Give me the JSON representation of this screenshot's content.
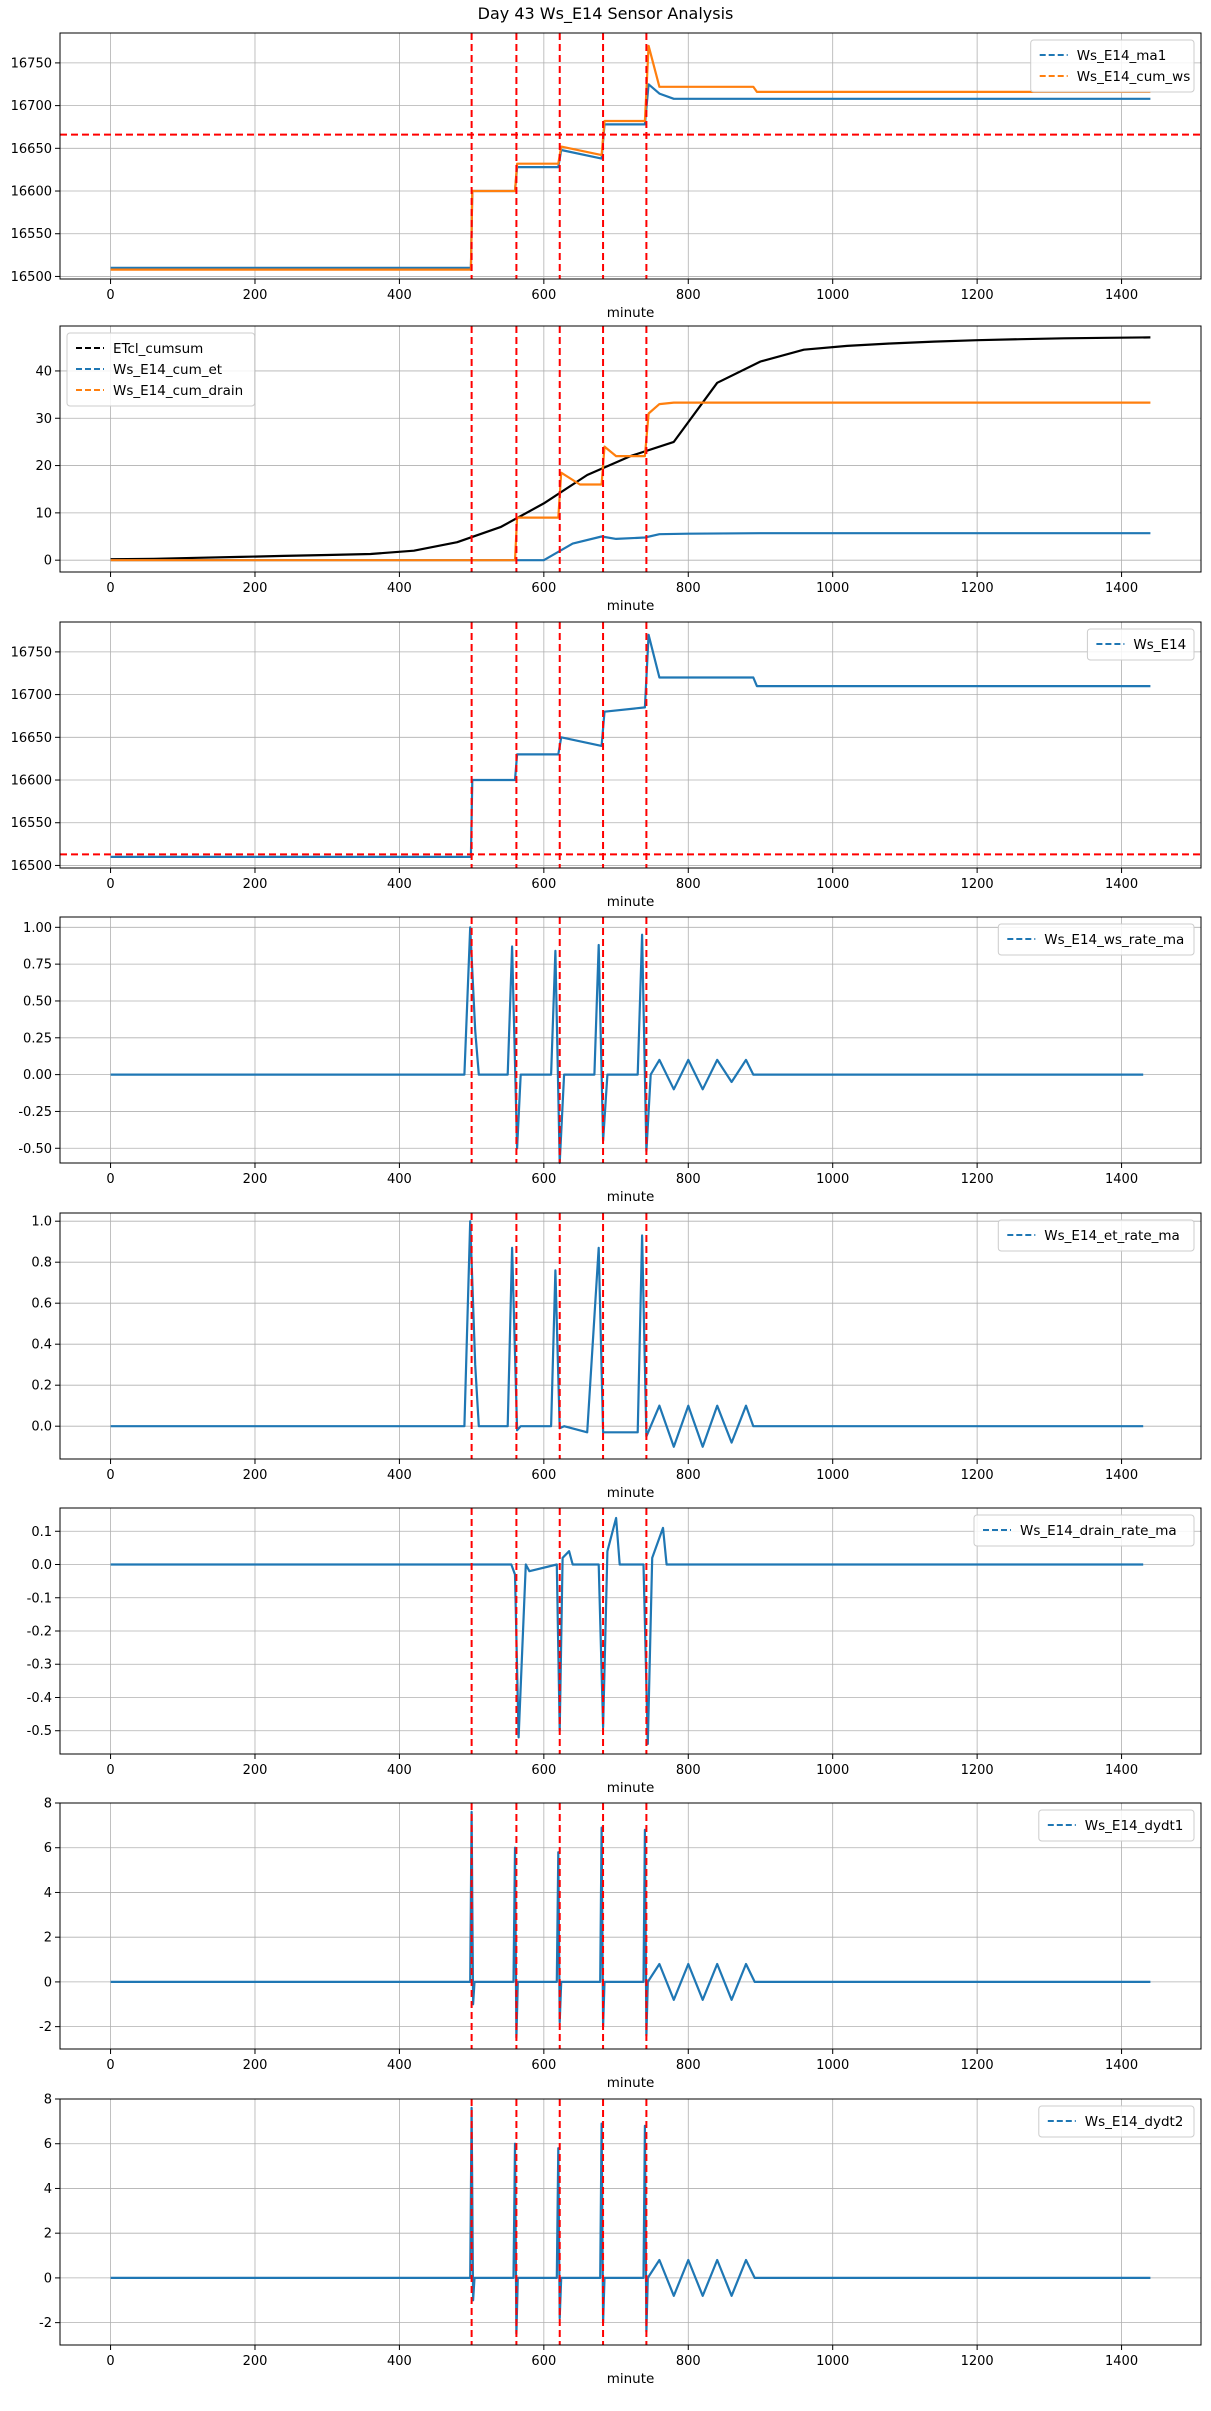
{
  "figure_title": "Day 43 Ws_E14 Sensor Analysis",
  "colors": {
    "blue": "#1f77b4",
    "orange": "#ff7f0e",
    "black": "#000000",
    "red": "#ff0000",
    "grid": "#b0b0b0"
  },
  "chart_data": [
    {
      "type": "line",
      "xlabel": "minute",
      "ylabel": "",
      "xlim": [
        -70,
        1510
      ],
      "ylim": [
        16497,
        16785
      ],
      "xticks": [
        0,
        200,
        400,
        600,
        800,
        1000,
        1200,
        1400
      ],
      "yticks": [
        16500,
        16550,
        16600,
        16650,
        16700,
        16750
      ],
      "ytick_labels": [
        "16500",
        "16550",
        "16600",
        "16650",
        "16700",
        "16750"
      ],
      "grid": true,
      "legend_position": "top-right",
      "vlines": [
        500,
        562,
        622,
        682,
        742
      ],
      "hlines": [
        16666
      ],
      "series": [
        {
          "name": "Ws_E14_ma1",
          "color": "#1f77b4",
          "x": [
            0,
            499,
            501,
            560,
            563,
            620,
            624,
            680,
            684,
            740,
            745,
            760,
            780,
            1440
          ],
          "y": [
            16510,
            16510,
            16600,
            16600,
            16628,
            16628,
            16648,
            16638,
            16678,
            16678,
            16725,
            16714,
            16708,
            16708
          ]
        },
        {
          "name": "Ws_E14_cum_ws",
          "color": "#ff7f0e",
          "x": [
            0,
            499,
            501,
            560,
            563,
            620,
            624,
            680,
            684,
            740,
            745,
            760,
            890,
            895,
            1440
          ],
          "y": [
            16508,
            16508,
            16600,
            16600,
            16632,
            16632,
            16652,
            16642,
            16682,
            16682,
            16770,
            16722,
            16722,
            16716,
            16716
          ]
        }
      ]
    },
    {
      "type": "line",
      "xlabel": "minute",
      "ylabel": "",
      "xlim": [
        -70,
        1510
      ],
      "ylim": [
        -2.5,
        49.5
      ],
      "xticks": [
        0,
        200,
        400,
        600,
        800,
        1000,
        1200,
        1400
      ],
      "yticks": [
        0,
        10,
        20,
        30,
        40
      ],
      "ytick_labels": [
        "0",
        "10",
        "20",
        "30",
        "40"
      ],
      "grid": true,
      "legend_position": "top-left",
      "vlines": [
        500,
        562,
        622,
        682,
        742
      ],
      "hlines": [],
      "series": [
        {
          "name": "ETcl_cumsum",
          "color": "#000000",
          "x": [
            0,
            60,
            120,
            180,
            240,
            300,
            360,
            420,
            480,
            540,
            600,
            660,
            720,
            780,
            840,
            900,
            960,
            1020,
            1080,
            1140,
            1200,
            1260,
            1320,
            1380,
            1440
          ],
          "y": [
            0.2,
            0.3,
            0.5,
            0.7,
            0.9,
            1.1,
            1.3,
            2.0,
            3.8,
            7.0,
            12.0,
            18.0,
            22.0,
            25.0,
            37.5,
            42.0,
            44.5,
            45.3,
            45.8,
            46.2,
            46.5,
            46.7,
            46.9,
            47.0,
            47.1
          ]
        },
        {
          "name": "Ws_E14_cum_et",
          "color": "#1f77b4",
          "x": [
            0,
            560,
            600,
            640,
            680,
            700,
            740,
            760,
            800,
            900,
            1440
          ],
          "y": [
            0,
            0,
            0,
            3.5,
            5.0,
            4.5,
            4.8,
            5.5,
            5.6,
            5.7,
            5.7
          ]
        },
        {
          "name": "Ws_E14_cum_drain",
          "color": "#ff7f0e",
          "x": [
            0,
            560,
            563,
            620,
            624,
            650,
            680,
            684,
            700,
            740,
            745,
            760,
            780,
            1440
          ],
          "y": [
            0,
            0,
            9,
            9,
            18.5,
            16,
            16,
            24,
            22,
            22,
            31,
            33,
            33.3,
            33.3
          ]
        }
      ]
    },
    {
      "type": "line",
      "xlabel": "minute",
      "ylabel": "",
      "xlim": [
        -70,
        1510
      ],
      "ylim": [
        16497,
        16785
      ],
      "xticks": [
        0,
        200,
        400,
        600,
        800,
        1000,
        1200,
        1400
      ],
      "yticks": [
        16500,
        16550,
        16600,
        16650,
        16700,
        16750
      ],
      "ytick_labels": [
        "16500",
        "16550",
        "16600",
        "16650",
        "16700",
        "16750"
      ],
      "grid": true,
      "legend_position": "top-right",
      "vlines": [
        500,
        562,
        622,
        682,
        742
      ],
      "hlines": [
        16513
      ],
      "series": [
        {
          "name": "Ws_E14",
          "color": "#1f77b4",
          "x": [
            0,
            499,
            501,
            560,
            563,
            620,
            624,
            680,
            684,
            740,
            745,
            760,
            890,
            895,
            1440
          ],
          "y": [
            16510,
            16510,
            16600,
            16600,
            16630,
            16630,
            16650,
            16640,
            16680,
            16685,
            16770,
            16720,
            16720,
            16710,
            16710
          ]
        }
      ]
    },
    {
      "type": "line",
      "xlabel": "minute",
      "ylabel": "",
      "xlim": [
        -70,
        1510
      ],
      "ylim": [
        -0.6,
        1.07
      ],
      "xticks": [
        0,
        200,
        400,
        600,
        800,
        1000,
        1200,
        1400
      ],
      "yticks": [
        -0.5,
        -0.25,
        0,
        0.25,
        0.5,
        0.75,
        1.0
      ],
      "ytick_labels": [
        "-0.50",
        "-0.25",
        "0.00",
        "0.25",
        "0.50",
        "0.75",
        "1.00"
      ],
      "grid": true,
      "legend_position": "top-right",
      "vlines": [
        500,
        562,
        622,
        682,
        742
      ],
      "hlines": [],
      "series": [
        {
          "name": "Ws_E14_ws_rate_ma",
          "color": "#1f77b4",
          "x": [
            0,
            490,
            498,
            505,
            510,
            550,
            556,
            563,
            568,
            610,
            616,
            622,
            628,
            670,
            676,
            682,
            688,
            730,
            736,
            742,
            748,
            760,
            780,
            800,
            820,
            840,
            860,
            880,
            890,
            1430
          ],
          "y": [
            0,
            0,
            1.0,
            0.3,
            0,
            0,
            0.87,
            -0.5,
            0,
            0,
            0.84,
            -0.6,
            0,
            0,
            0.88,
            -0.45,
            0,
            0,
            0.95,
            -0.52,
            0,
            0.1,
            -0.1,
            0.1,
            -0.1,
            0.1,
            -0.05,
            0.1,
            0,
            0
          ]
        }
      ]
    },
    {
      "type": "line",
      "xlabel": "minute",
      "ylabel": "",
      "xlim": [
        -70,
        1510
      ],
      "ylim": [
        -0.16,
        1.04
      ],
      "xticks": [
        0,
        200,
        400,
        600,
        800,
        1000,
        1200,
        1400
      ],
      "yticks": [
        0,
        0.2,
        0.4,
        0.6,
        0.8,
        1.0
      ],
      "ytick_labels": [
        "0.0",
        "0.2",
        "0.4",
        "0.6",
        "0.8",
        "1.0"
      ],
      "grid": true,
      "legend_position": "top-right",
      "vlines": [
        500,
        562,
        622,
        682,
        742
      ],
      "hlines": [],
      "series": [
        {
          "name": "Ws_E14_et_rate_ma",
          "color": "#1f77b4",
          "x": [
            0,
            490,
            498,
            505,
            510,
            550,
            556,
            563,
            568,
            610,
            616,
            622,
            628,
            660,
            676,
            682,
            700,
            730,
            736,
            742,
            748,
            760,
            780,
            800,
            820,
            840,
            860,
            880,
            890,
            1430
          ],
          "y": [
            0,
            0,
            1.0,
            0.3,
            0,
            0,
            0.87,
            -0.02,
            0,
            0,
            0.76,
            -0.01,
            0,
            -0.03,
            0.87,
            -0.03,
            -0.03,
            -0.03,
            0.93,
            -0.05,
            0,
            0.1,
            -0.1,
            0.1,
            -0.1,
            0.1,
            -0.08,
            0.1,
            0,
            0
          ]
        }
      ]
    },
    {
      "type": "line",
      "xlabel": "minute",
      "ylabel": "",
      "xlim": [
        -70,
        1510
      ],
      "ylim": [
        -0.57,
        0.17
      ],
      "xticks": [
        0,
        200,
        400,
        600,
        800,
        1000,
        1200,
        1400
      ],
      "yticks": [
        -0.5,
        -0.4,
        -0.3,
        -0.2,
        -0.1,
        0,
        0.1
      ],
      "ytick_labels": [
        "-0.5",
        "-0.4",
        "-0.3",
        "-0.2",
        "-0.1",
        "0.0",
        "0.1"
      ],
      "grid": true,
      "legend_position": "top-right",
      "vlines": [
        500,
        562,
        622,
        682,
        742
      ],
      "hlines": [],
      "series": [
        {
          "name": "Ws_E14_drain_rate_ma",
          "color": "#1f77b4",
          "x": [
            0,
            555,
            560,
            565,
            575,
            580,
            618,
            622,
            626,
            635,
            640,
            676,
            682,
            688,
            700,
            705,
            738,
            744,
            750,
            765,
            770,
            1430
          ],
          "y": [
            0,
            0,
            -0.03,
            -0.52,
            0,
            -0.02,
            0,
            -0.5,
            0.02,
            0.04,
            0,
            0,
            -0.49,
            0.04,
            0.14,
            0,
            0,
            -0.54,
            0.02,
            0.11,
            0,
            0
          ]
        }
      ]
    },
    {
      "type": "line",
      "xlabel": "minute",
      "ylabel": "",
      "xlim": [
        -70,
        1510
      ],
      "ylim": [
        -3.0,
        8.0
      ],
      "xticks": [
        0,
        200,
        400,
        600,
        800,
        1000,
        1200,
        1400
      ],
      "yticks": [
        -2,
        0,
        2,
        4,
        6,
        8
      ],
      "ytick_labels": [
        "-2",
        "0",
        "2",
        "4",
        "6",
        "8"
      ],
      "grid": true,
      "legend_position": "top-right",
      "vlines": [
        500,
        562,
        622,
        682,
        742
      ],
      "hlines": [],
      "series": [
        {
          "name": "Ws_E14_dydt1",
          "color": "#1f77b4",
          "x": [
            0,
            498,
            500,
            502,
            504,
            558,
            560,
            562,
            564,
            618,
            620,
            622,
            624,
            678,
            680,
            682,
            684,
            738,
            740,
            742,
            744,
            760,
            780,
            800,
            820,
            840,
            860,
            880,
            892,
            1440
          ],
          "y": [
            0,
            0,
            7.6,
            -1.0,
            0,
            0,
            6.0,
            -2.5,
            0,
            0,
            5.8,
            -1.8,
            0,
            0,
            6.9,
            -2.0,
            0,
            0,
            6.8,
            -2.4,
            0,
            0.8,
            -0.8,
            0.8,
            -0.8,
            0.8,
            -0.8,
            0.8,
            0,
            0
          ]
        }
      ]
    },
    {
      "type": "line",
      "xlabel": "minute",
      "ylabel": "",
      "xlim": [
        -70,
        1510
      ],
      "ylim": [
        -3.0,
        8.0
      ],
      "xticks": [
        0,
        200,
        400,
        600,
        800,
        1000,
        1200,
        1400
      ],
      "yticks": [
        -2,
        0,
        2,
        4,
        6,
        8
      ],
      "ytick_labels": [
        "-2",
        "0",
        "2",
        "4",
        "6",
        "8"
      ],
      "grid": true,
      "legend_position": "top-right",
      "vlines": [
        500,
        562,
        622,
        682,
        742
      ],
      "hlines": [],
      "series": [
        {
          "name": "Ws_E14_dydt2",
          "color": "#1f77b4",
          "x": [
            0,
            498,
            500,
            502,
            504,
            558,
            560,
            562,
            564,
            618,
            620,
            622,
            624,
            678,
            680,
            682,
            684,
            738,
            740,
            742,
            744,
            760,
            780,
            800,
            820,
            840,
            860,
            880,
            892,
            1440
          ],
          "y": [
            0,
            0,
            7.6,
            -1.0,
            0,
            0,
            6.0,
            -2.5,
            0,
            0,
            5.8,
            -1.8,
            0,
            0,
            6.9,
            -2.0,
            0,
            0,
            6.8,
            -2.4,
            0,
            0.8,
            -0.8,
            0.8,
            -0.8,
            0.8,
            -0.8,
            0.8,
            0,
            0
          ]
        }
      ]
    }
  ]
}
